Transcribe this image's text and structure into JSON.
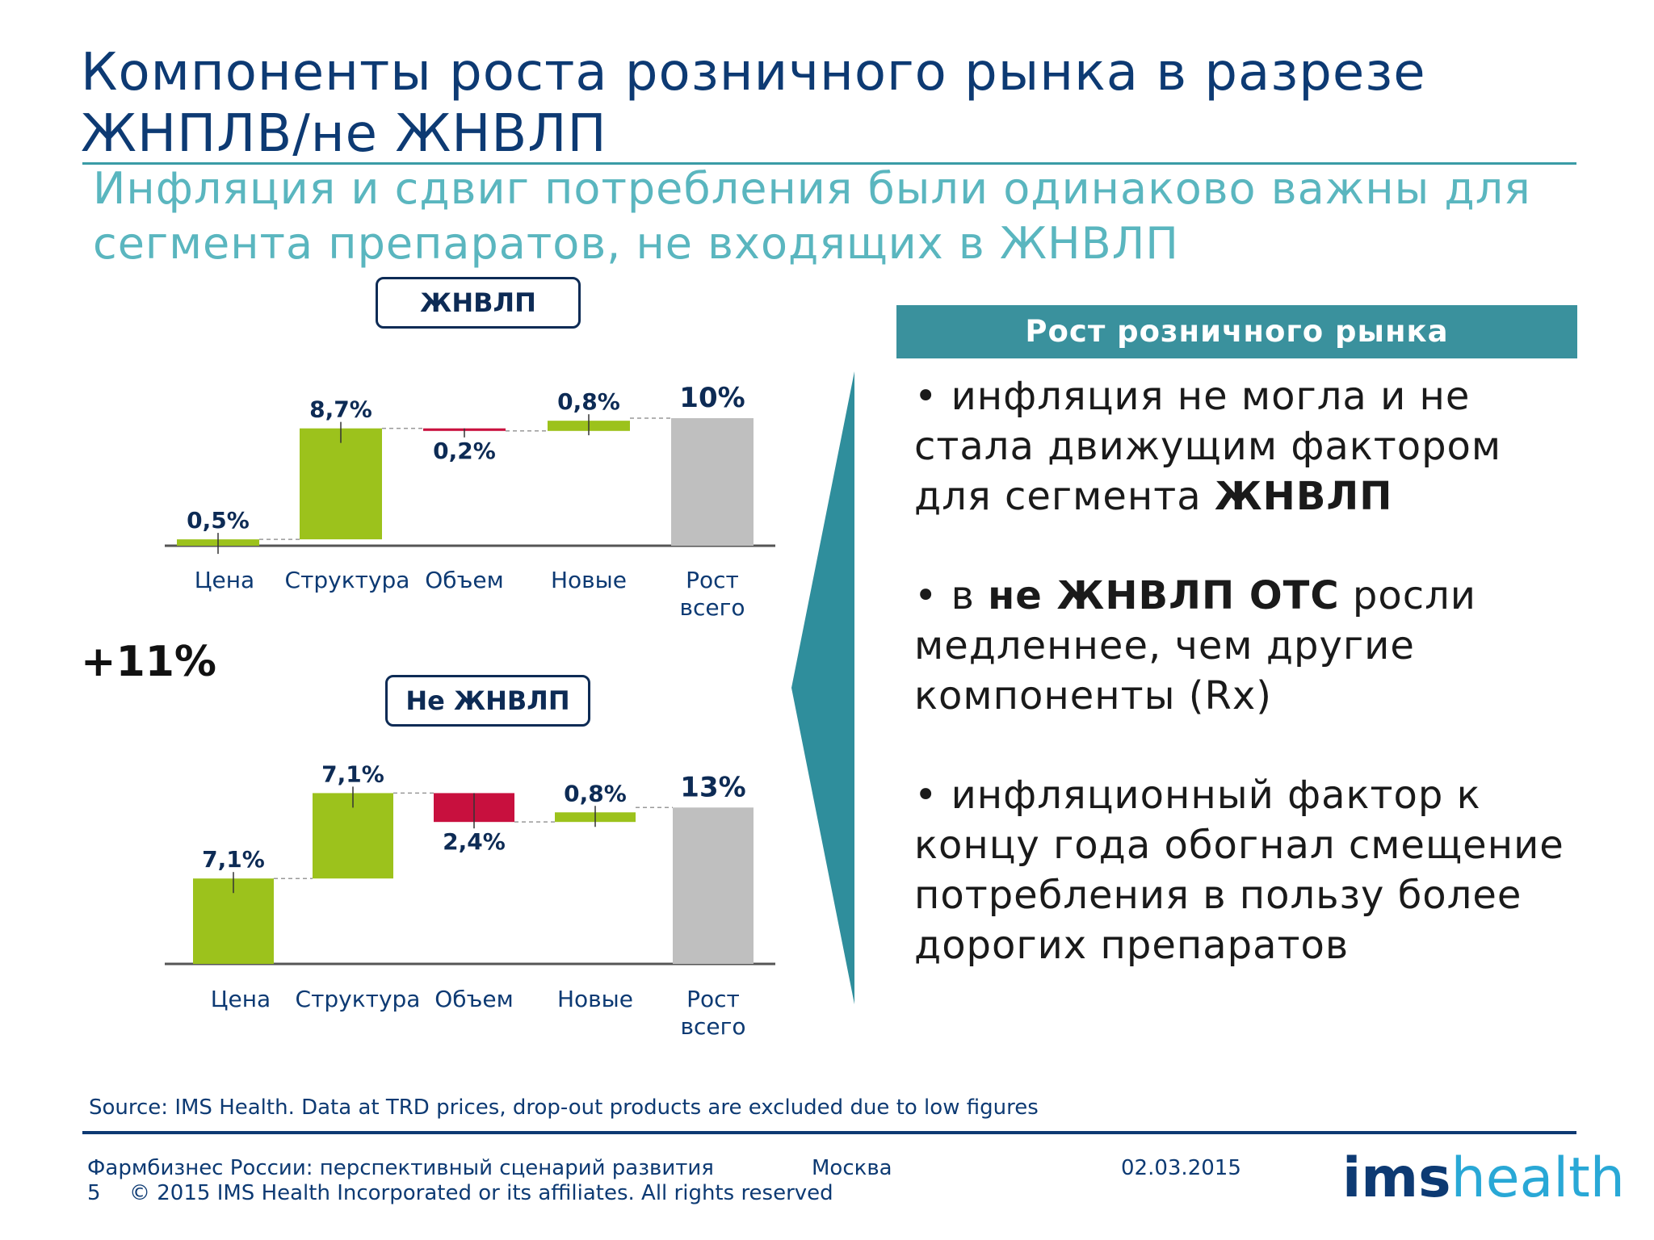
{
  "title": "Компоненты роста розничного рынка в разрезе ЖНПЛВ/не ЖНВЛП",
  "subtitle": "Инфляция и сдвиг потребления были одинаково важны для сегмента препаратов, не входящих в ЖНВЛП",
  "total_growth": "+11%",
  "colors": {
    "increase": "#9cc21c",
    "decrease": "#c8103e",
    "total": "#bfbfbf",
    "accent": "#3a919d",
    "navy": "#0d3a73"
  },
  "chart_data": [
    {
      "type": "bar",
      "subtype": "waterfall",
      "title": "ЖНВЛП",
      "categories": [
        "Цена",
        "Структура",
        "Объем",
        "Новые",
        "Рост всего"
      ],
      "values": [
        0.5,
        8.7,
        -0.2,
        0.8,
        10
      ],
      "kinds": [
        "increase",
        "increase",
        "decrease",
        "increase",
        "total"
      ],
      "data_labels": [
        "0,5%",
        "8,7%",
        "0,2%",
        "0,8%",
        "10%"
      ],
      "xlabel": "",
      "ylabel": "",
      "grid": false,
      "legend": "none"
    },
    {
      "type": "bar",
      "subtype": "waterfall",
      "title": "Не ЖНВЛП",
      "categories": [
        "Цена",
        "Структура",
        "Объем",
        "Новые",
        "Рост всего"
      ],
      "values": [
        7.1,
        7.1,
        -2.4,
        0.8,
        13
      ],
      "kinds": [
        "increase",
        "increase",
        "decrease",
        "increase",
        "total"
      ],
      "data_labels": [
        "7,1%",
        "7,1%",
        "2,4%",
        "0,8%",
        "13%"
      ],
      "xlabel": "",
      "ylabel": "",
      "grid": false,
      "legend": "none"
    }
  ],
  "panel": {
    "header": "Рост розничного рынка",
    "bullets": [
      {
        "before": "• инфляция не могла и не стала движущим фактором для сегмента ",
        "bold": "ЖНВЛП",
        "after": ""
      },
      {
        "before": "• в ",
        "bold": "не ЖНВЛП ОТС",
        "after": " росли медленнее, чем другие компоненты (Rx)"
      },
      {
        "before": "• инфляционный фактор к концу года обогнал смещение потребления в пользу более дорогих препаратов",
        "bold": "",
        "after": ""
      }
    ]
  },
  "source": "Source: IMS Health. Data at  TRD prices, drop-out products are excluded due to low figures",
  "footer": {
    "title": "Фармбизнес России: перспективный сценарий развития",
    "city": "Москва",
    "date": "02.03.2015",
    "page": "5",
    "copyright": "© 2015 IMS Health Incorporated or its affiliates. All rights reserved"
  },
  "logo": {
    "part1": "ims",
    "part2": "health"
  }
}
